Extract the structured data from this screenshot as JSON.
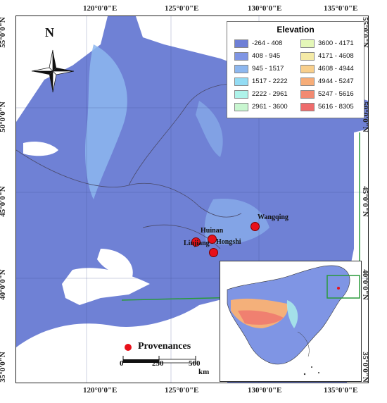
{
  "map": {
    "lon_labels": [
      "120°0'0\"E",
      "125°0'0\"E",
      "130°0'0\"E",
      "135°0'0\"E"
    ],
    "lat_labels": [
      "55°0'0\"N",
      "50°0'0\"N",
      "45°0'0\"N",
      "40°0'0\"N",
      "35°0'0\"N"
    ],
    "north_label": "N"
  },
  "legend": {
    "title": "Elevation",
    "items": [
      {
        "label": "-264 - 408",
        "color": "#6e7fd6"
      },
      {
        "label": "408 - 945",
        "color": "#7f95e4"
      },
      {
        "label": "945 - 1517",
        "color": "#8db7ef"
      },
      {
        "label": "1517 - 2222",
        "color": "#93dcf4"
      },
      {
        "label": "2222 - 2961",
        "color": "#aef3ea"
      },
      {
        "label": "2961 - 3600",
        "color": "#c8f6d0"
      },
      {
        "label": "3600 - 4171",
        "color": "#e4f7b8"
      },
      {
        "label": "4171 - 4608",
        "color": "#f4eaa6"
      },
      {
        "label": "4608 - 4944",
        "color": "#f8cf8c"
      },
      {
        "label": "4944 - 5247",
        "color": "#f7ad78"
      },
      {
        "label": "5247 - 5616",
        "color": "#f28a71"
      },
      {
        "label": "5616 - 8305",
        "color": "#ee6c6c"
      }
    ]
  },
  "cities": [
    {
      "name": "Huinan"
    },
    {
      "name": "Linjiang"
    },
    {
      "name": "Hongshi"
    },
    {
      "name": "Wangqing"
    }
  ],
  "provenance_label": "Provenances",
  "scale": {
    "ticks": [
      "0",
      "250",
      "500"
    ],
    "unit": "km"
  },
  "colors": {
    "land": "#7083d6",
    "sea": "#ffffff",
    "highland": "#8fb9ef",
    "marker": "#e8101a",
    "connector": "#2a9a3a"
  }
}
